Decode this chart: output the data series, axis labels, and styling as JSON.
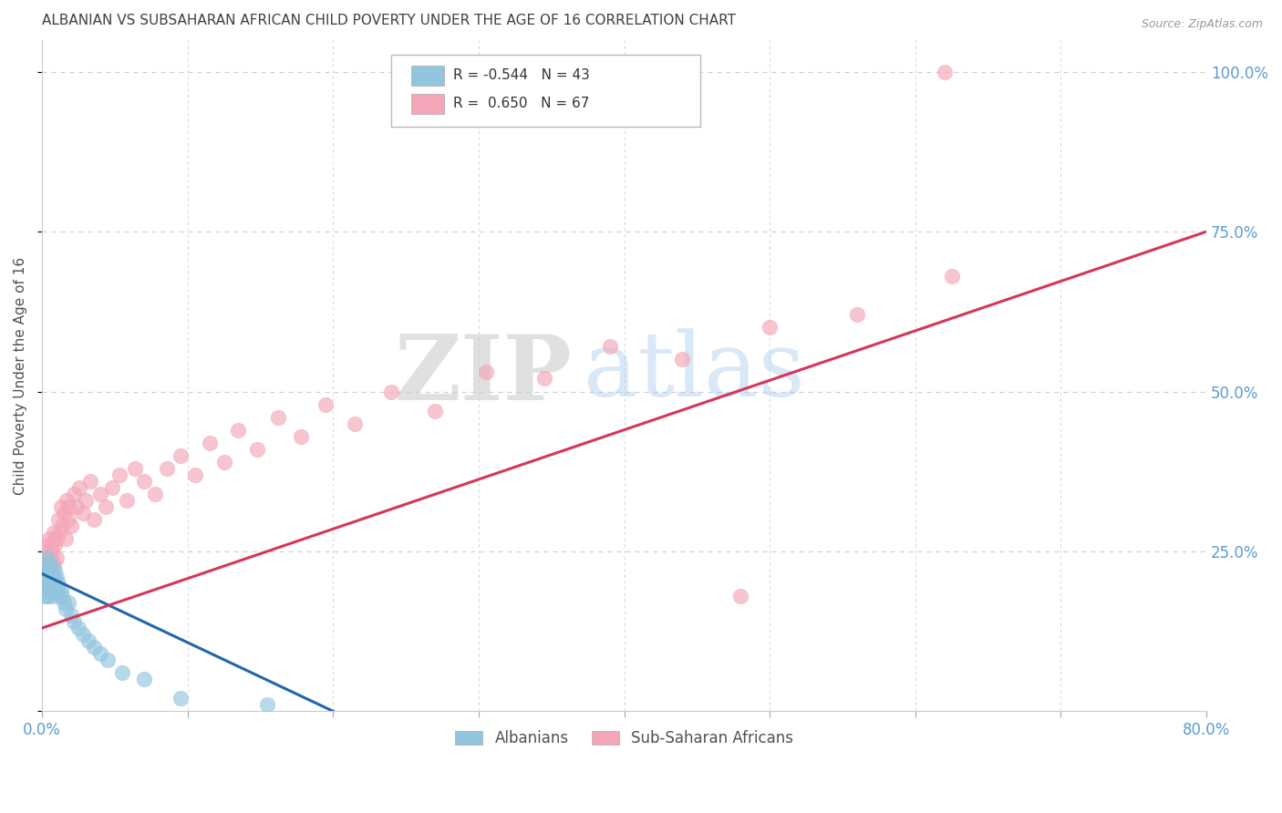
{
  "title": "ALBANIAN VS SUBSAHARAN AFRICAN CHILD POVERTY UNDER THE AGE OF 16 CORRELATION CHART",
  "source": "Source: ZipAtlas.com",
  "ylabel": "Child Poverty Under the Age of 16",
  "xlim": [
    0,
    0.8
  ],
  "ylim": [
    0,
    1.05
  ],
  "xticks": [
    0.0,
    0.1,
    0.2,
    0.3,
    0.4,
    0.5,
    0.6,
    0.7,
    0.8
  ],
  "xticklabels": [
    "0.0%",
    "",
    "",
    "",
    "",
    "",
    "",
    "",
    "80.0%"
  ],
  "ytick_positions": [
    0.0,
    0.25,
    0.5,
    0.75,
    1.0
  ],
  "ytick_labels": [
    "",
    "25.0%",
    "50.0%",
    "75.0%",
    "100.0%"
  ],
  "legend_label1": "Albanians",
  "legend_label2": "Sub-Saharan Africans",
  "color_blue": "#92c5de",
  "color_blue_dark": "#2166ac",
  "color_pink": "#f4a6b8",
  "color_pink_dark": "#d6365a",
  "watermark_zip": "ZIP",
  "watermark_atlas": "atlas",
  "background_color": "#ffffff",
  "grid_color": "#d0d0d0",
  "title_color": "#404040",
  "tick_color": "#5b9bd5",
  "albanians_x": [
    0.001,
    0.001,
    0.002,
    0.002,
    0.002,
    0.003,
    0.003,
    0.003,
    0.004,
    0.004,
    0.004,
    0.005,
    0.005,
    0.006,
    0.006,
    0.006,
    0.007,
    0.007,
    0.008,
    0.008,
    0.009,
    0.009,
    0.01,
    0.01,
    0.011,
    0.012,
    0.013,
    0.014,
    0.015,
    0.016,
    0.018,
    0.02,
    0.022,
    0.025,
    0.028,
    0.032,
    0.036,
    0.04,
    0.045,
    0.055,
    0.07,
    0.095,
    0.155
  ],
  "albanians_y": [
    0.2,
    0.22,
    0.18,
    0.21,
    0.23,
    0.19,
    0.22,
    0.2,
    0.18,
    0.21,
    0.24,
    0.2,
    0.22,
    0.19,
    0.21,
    0.23,
    0.2,
    0.18,
    0.21,
    0.19,
    0.2,
    0.22,
    0.19,
    0.21,
    0.2,
    0.18,
    0.19,
    0.18,
    0.17,
    0.16,
    0.17,
    0.15,
    0.14,
    0.13,
    0.12,
    0.11,
    0.1,
    0.09,
    0.08,
    0.06,
    0.05,
    0.02,
    0.01
  ],
  "subsaharan_x": [
    0.001,
    0.001,
    0.002,
    0.002,
    0.003,
    0.003,
    0.003,
    0.004,
    0.004,
    0.005,
    0.005,
    0.006,
    0.006,
    0.007,
    0.007,
    0.008,
    0.008,
    0.009,
    0.01,
    0.01,
    0.011,
    0.012,
    0.013,
    0.014,
    0.015,
    0.016,
    0.017,
    0.018,
    0.019,
    0.02,
    0.022,
    0.024,
    0.026,
    0.028,
    0.03,
    0.033,
    0.036,
    0.04,
    0.044,
    0.048,
    0.053,
    0.058,
    0.064,
    0.07,
    0.078,
    0.086,
    0.095,
    0.105,
    0.115,
    0.125,
    0.135,
    0.148,
    0.162,
    0.178,
    0.195,
    0.215,
    0.24,
    0.27,
    0.305,
    0.345,
    0.39,
    0.44,
    0.5,
    0.56,
    0.625,
    0.62,
    0.48
  ],
  "subsaharan_y": [
    0.2,
    0.22,
    0.19,
    0.23,
    0.21,
    0.24,
    0.26,
    0.22,
    0.25,
    0.23,
    0.27,
    0.24,
    0.26,
    0.22,
    0.25,
    0.28,
    0.23,
    0.26,
    0.24,
    0.27,
    0.3,
    0.28,
    0.32,
    0.29,
    0.31,
    0.27,
    0.33,
    0.3,
    0.32,
    0.29,
    0.34,
    0.32,
    0.35,
    0.31,
    0.33,
    0.36,
    0.3,
    0.34,
    0.32,
    0.35,
    0.37,
    0.33,
    0.38,
    0.36,
    0.34,
    0.38,
    0.4,
    0.37,
    0.42,
    0.39,
    0.44,
    0.41,
    0.46,
    0.43,
    0.48,
    0.45,
    0.5,
    0.47,
    0.53,
    0.52,
    0.57,
    0.55,
    0.6,
    0.62,
    0.68,
    1.0,
    0.18
  ],
  "blue_line_x": [
    0.0,
    0.2
  ],
  "blue_line_y": [
    0.215,
    0.0
  ],
  "pink_line_x": [
    0.0,
    0.8
  ],
  "pink_line_y": [
    0.13,
    0.75
  ]
}
